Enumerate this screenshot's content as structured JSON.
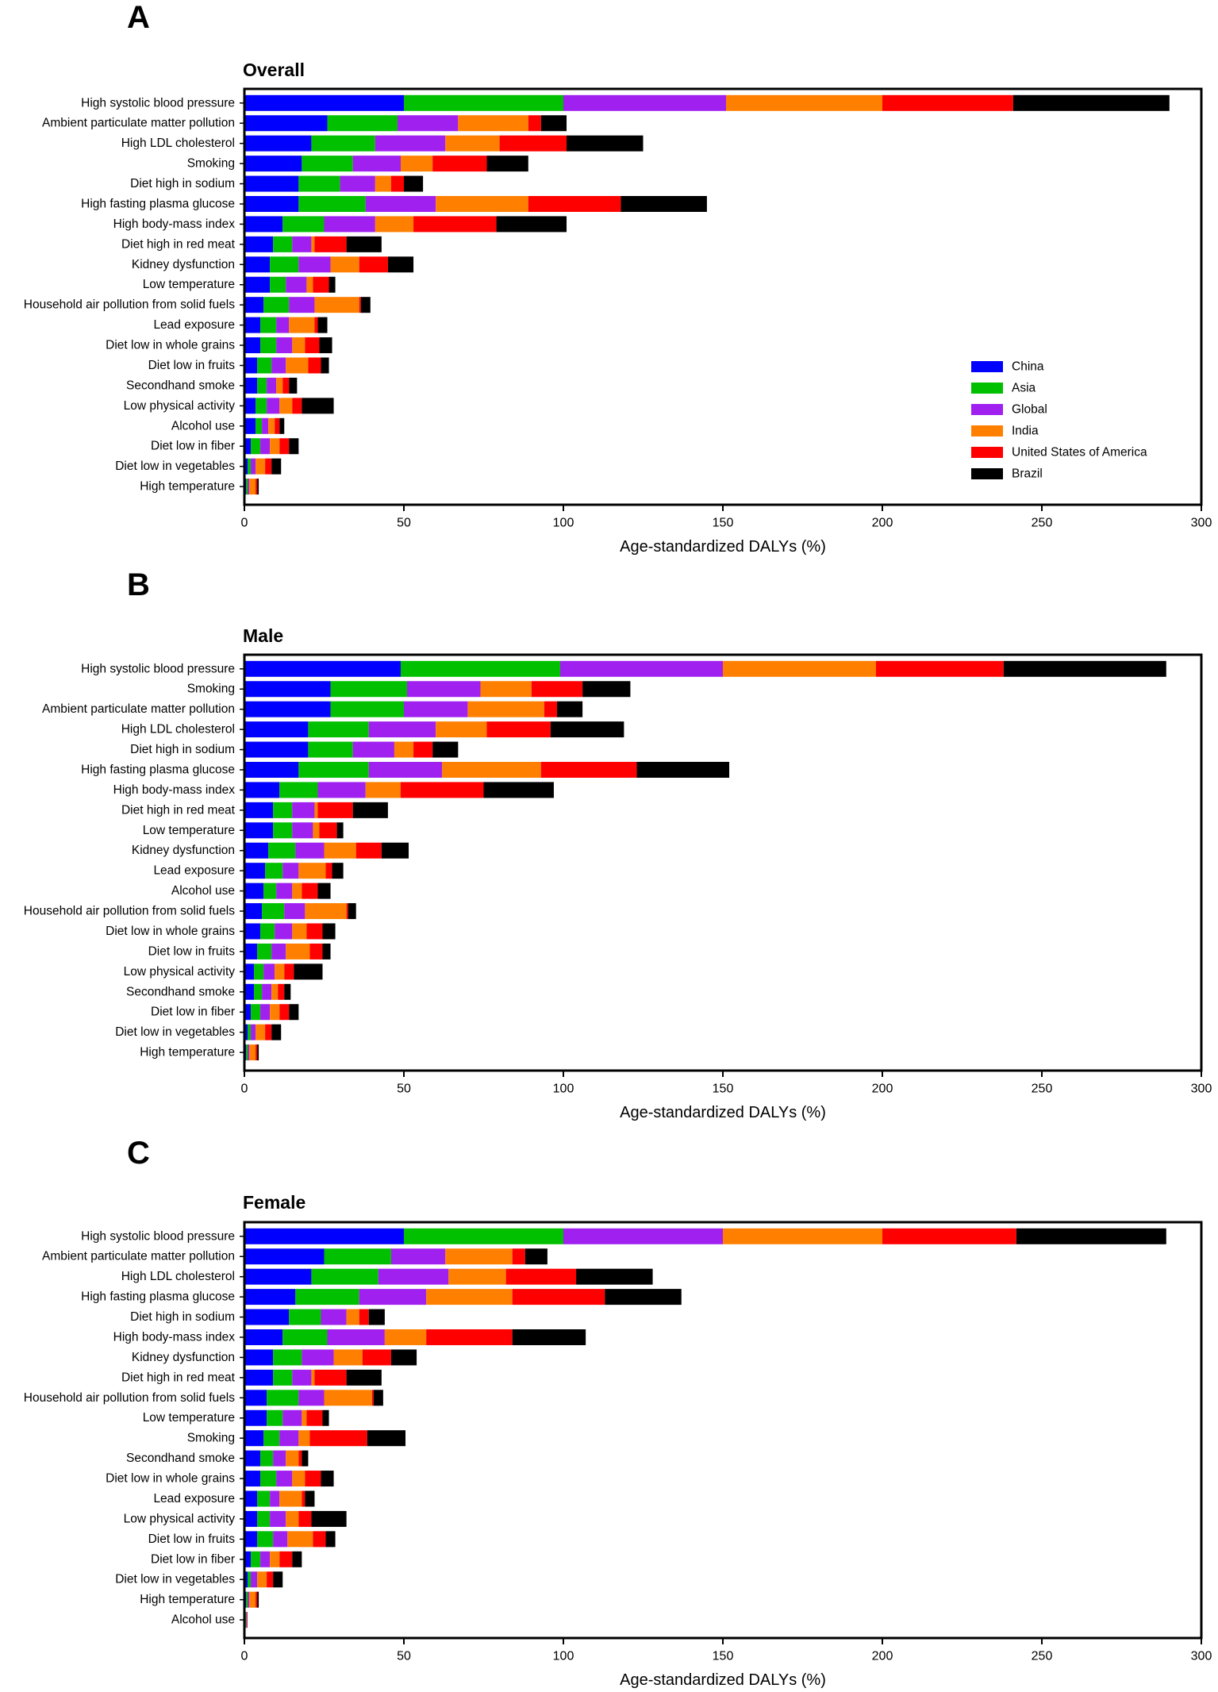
{
  "colors": {
    "China": "#0000ff",
    "Asia": "#00c000",
    "Global": "#a020f0",
    "India": "#ff8000",
    "United States of America": "#ff0000",
    "Brazil": "#000000"
  },
  "legend": {
    "location": "right",
    "entries": [
      "China",
      "Asia",
      "Global",
      "India",
      "United States of America",
      "Brazil"
    ]
  },
  "chart_data": [
    {
      "panel": "A",
      "title": "Overall",
      "type": "bar",
      "orientation": "horizontal",
      "stacked": true,
      "xlabel": "Age-standardized DALYs (%)",
      "xlim": [
        0,
        300
      ],
      "xticks": [
        0,
        50,
        100,
        150,
        200,
        250,
        300
      ],
      "categories": [
        "High systolic blood pressure",
        "Ambient particulate matter pollution",
        "High LDL cholesterol",
        "Smoking",
        "Diet high in sodium",
        "High fasting plasma glucose",
        "High body-mass index",
        "Diet high in red meat",
        "Kidney dysfunction",
        "Low temperature",
        "Household air pollution from solid fuels",
        "Lead exposure",
        "Diet low in whole grains",
        "Diet low in fruits",
        "Secondhand smoke",
        "Low physical activity",
        "Alcohol use",
        "Diet low in fiber",
        "Diet low in vegetables",
        "High temperature"
      ],
      "series": [
        {
          "name": "China",
          "values": [
            50,
            26,
            21,
            18,
            17,
            17,
            12,
            9,
            8,
            8,
            6,
            5,
            5,
            4,
            4,
            3.5,
            3.5,
            2,
            1,
            0.5
          ]
        },
        {
          "name": "Asia",
          "values": [
            50,
            22,
            20,
            16,
            13,
            21,
            13,
            6,
            9,
            5,
            8,
            5,
            5,
            4.5,
            3,
            3.5,
            2,
            3,
            1,
            0.5
          ]
        },
        {
          "name": "Global",
          "values": [
            51,
            19,
            22,
            15,
            11,
            22,
            16,
            6,
            10,
            6.5,
            8,
            4,
            5,
            4.5,
            3,
            4,
            2,
            3,
            1.5,
            0.5
          ]
        },
        {
          "name": "India",
          "values": [
            49,
            22,
            17,
            10,
            5,
            29,
            12,
            1,
            9,
            2,
            14,
            8,
            4,
            7,
            2,
            4,
            2,
            3,
            3,
            2
          ]
        },
        {
          "name": "United States of America",
          "values": [
            41,
            4,
            21,
            17,
            4,
            29,
            26,
            10,
            9,
            5,
            0.5,
            1,
            4.5,
            4,
            2,
            3,
            1.5,
            3,
            2,
            0.5
          ]
        },
        {
          "name": "Brazil",
          "values": [
            49,
            8,
            24,
            13,
            6,
            27,
            22,
            11,
            8,
            2,
            3,
            3,
            4,
            2.5,
            2.5,
            10,
            1.5,
            3,
            3,
            0.5
          ]
        }
      ]
    },
    {
      "panel": "B",
      "title": "Male",
      "type": "bar",
      "orientation": "horizontal",
      "stacked": true,
      "xlabel": "Age-standardized DALYs (%)",
      "xlim": [
        0,
        300
      ],
      "xticks": [
        0,
        50,
        100,
        150,
        200,
        250,
        300
      ],
      "categories": [
        "High systolic blood pressure",
        "Smoking",
        "Ambient particulate matter pollution",
        "High LDL cholesterol",
        "Diet high in sodium",
        "High fasting plasma glucose",
        "High body-mass index",
        "Diet high in red meat",
        "Low temperature",
        "Kidney dysfunction",
        "Lead exposure",
        "Alcohol use",
        "Household air pollution from solid fuels",
        "Diet low in whole grains",
        "Diet low in fruits",
        "Low physical activity",
        "Secondhand smoke",
        "Diet low in fiber",
        "Diet low in vegetables",
        "High temperature"
      ],
      "series": [
        {
          "name": "China",
          "values": [
            49,
            27,
            27,
            20,
            20,
            17,
            11,
            9,
            9,
            7.5,
            6.5,
            6,
            5.5,
            5,
            4,
            3,
            3,
            2,
            1,
            0.5
          ]
        },
        {
          "name": "Asia",
          "values": [
            50,
            24,
            23,
            19,
            14,
            22,
            12,
            6,
            6,
            8.5,
            5.5,
            4,
            7,
            4.5,
            4.5,
            3,
            2.5,
            3,
            1,
            0.5
          ]
        },
        {
          "name": "Global",
          "values": [
            51,
            23,
            20,
            21,
            13,
            23,
            15,
            7,
            6.5,
            9,
            5,
            5,
            6.5,
            5.5,
            4.5,
            3.5,
            3,
            3,
            1.5,
            0.5
          ]
        },
        {
          "name": "India",
          "values": [
            48,
            16,
            24,
            16,
            6,
            31,
            11,
            1,
            2,
            10,
            8.5,
            3,
            13,
            4.5,
            7.5,
            3,
            2,
            3,
            3,
            2
          ]
        },
        {
          "name": "United States of America",
          "values": [
            40,
            16,
            4,
            20,
            6,
            30,
            26,
            11,
            5.5,
            8,
            2,
            5,
            0.5,
            5,
            4,
            3,
            2,
            3,
            2,
            0.5
          ]
        },
        {
          "name": "Brazil",
          "values": [
            51,
            15,
            8,
            23,
            8,
            29,
            22,
            11,
            2,
            8.5,
            3.5,
            4,
            2.5,
            4,
            2.5,
            9,
            2,
            3,
            3,
            0.5
          ]
        }
      ]
    },
    {
      "panel": "C",
      "title": "Female",
      "type": "bar",
      "orientation": "horizontal",
      "stacked": true,
      "xlabel": "Age-standardized DALYs (%)",
      "xlim": [
        0,
        300
      ],
      "xticks": [
        0,
        50,
        100,
        150,
        200,
        250,
        300
      ],
      "categories": [
        "High systolic blood pressure",
        "Ambient particulate matter pollution",
        "High LDL cholesterol",
        "High fasting plasma glucose",
        "Diet high in sodium",
        "High body-mass index",
        "Kidney dysfunction",
        "Diet high in red meat",
        "Household air pollution from solid fuels",
        "Low temperature",
        "Smoking",
        "Secondhand smoke",
        "Diet low in whole grains",
        "Lead exposure",
        "Low physical activity",
        "Diet low in fruits",
        "Diet low in fiber",
        "Diet low in vegetables",
        "High temperature",
        "Alcohol use"
      ],
      "series": [
        {
          "name": "China",
          "values": [
            50,
            25,
            21,
            16,
            14,
            12,
            9,
            9,
            7,
            7,
            6,
            5,
            5,
            4,
            4,
            4,
            2,
            1,
            0.5,
            0.3
          ]
        },
        {
          "name": "Asia",
          "values": [
            50,
            21,
            21,
            20,
            10,
            14,
            9,
            6,
            10,
            5,
            5,
            4,
            5,
            4,
            4,
            5,
            3,
            1,
            0.5,
            0.2
          ]
        },
        {
          "name": "Global",
          "values": [
            50,
            17,
            22,
            21,
            8,
            18,
            10,
            6,
            8,
            6,
            6,
            4,
            5,
            3,
            5,
            4.5,
            3,
            2,
            0.5,
            0.2
          ]
        },
        {
          "name": "India",
          "values": [
            50,
            21,
            18,
            27,
            4,
            13,
            9,
            1,
            15,
            1.5,
            3.5,
            4,
            4,
            7,
            4,
            8,
            3,
            3,
            2,
            0.1
          ]
        },
        {
          "name": "United States of America",
          "values": [
            42,
            4,
            22,
            29,
            3,
            27,
            9,
            10,
            0.5,
            5,
            18,
            1,
            5,
            1,
            4,
            4,
            4,
            2,
            0.5,
            0.1
          ]
        },
        {
          "name": "Brazil",
          "values": [
            47,
            7,
            24,
            24,
            5,
            23,
            8,
            11,
            3,
            2,
            12,
            2,
            4,
            3,
            11,
            3,
            3,
            3,
            0.5,
            0.1
          ]
        }
      ]
    }
  ]
}
